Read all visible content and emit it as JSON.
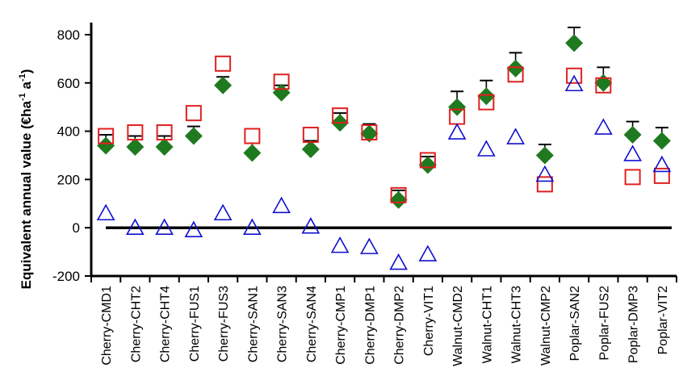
{
  "chart_data": {
    "type": "scatter",
    "title": "",
    "ylabel": "Equivalent annual value",
    "ylabel_unit_prefix": "(€ha",
    "ylabel_exp1": "-1",
    "ylabel_mid": " a",
    "ylabel_exp2": "-1",
    "ylabel_suffix": ")",
    "xlabel": "",
    "ylim": [
      -200,
      850
    ],
    "yticks": [
      -200,
      0,
      200,
      400,
      600,
      800
    ],
    "zero_line": true,
    "grid": false,
    "legend": "none",
    "categories": [
      "Cherry-CMD1",
      "Cherry-CHT2",
      "Cherry-CHT4",
      "Cherry-FUS1",
      "Cherry-FUS3",
      "Cherry-SAN1",
      "Cherry-SAN3",
      "Cherry-SAN4",
      "Cherry-CMP1",
      "Cherry-DMP1",
      "Cherry-DMP2",
      "Cherry-VIT1",
      "Walnut-CMD2",
      "Walnut-CHT1",
      "Walnut-CHT3",
      "Walnut-CMP2",
      "Poplar-SAN2",
      "Poplar-FUS2",
      "Poplar-DMP3",
      "Poplar-VIT2"
    ],
    "series": [
      {
        "marker": "diamond",
        "color": "#1f7a1f",
        "values": [
          340,
          335,
          335,
          380,
          590,
          310,
          560,
          325,
          435,
          390,
          115,
          260,
          500,
          545,
          660,
          300,
          765,
          600,
          385,
          360
        ],
        "error_up": [
          45,
          45,
          45,
          40,
          35,
          40,
          30,
          35,
          40,
          40,
          40,
          35,
          65,
          65,
          65,
          45,
          65,
          65,
          55,
          55
        ]
      },
      {
        "marker": "square",
        "color": "#e02020",
        "values": [
          380,
          395,
          395,
          475,
          680,
          380,
          605,
          385,
          465,
          395,
          135,
          280,
          460,
          520,
          635,
          180,
          630,
          590,
          210,
          215
        ]
      },
      {
        "marker": "triangle",
        "color": "#1010d0",
        "values": [
          60,
          0,
          0,
          -10,
          60,
          0,
          90,
          5,
          -75,
          -80,
          -145,
          -110,
          395,
          325,
          375,
          220,
          595,
          415,
          305,
          260
        ]
      }
    ]
  }
}
